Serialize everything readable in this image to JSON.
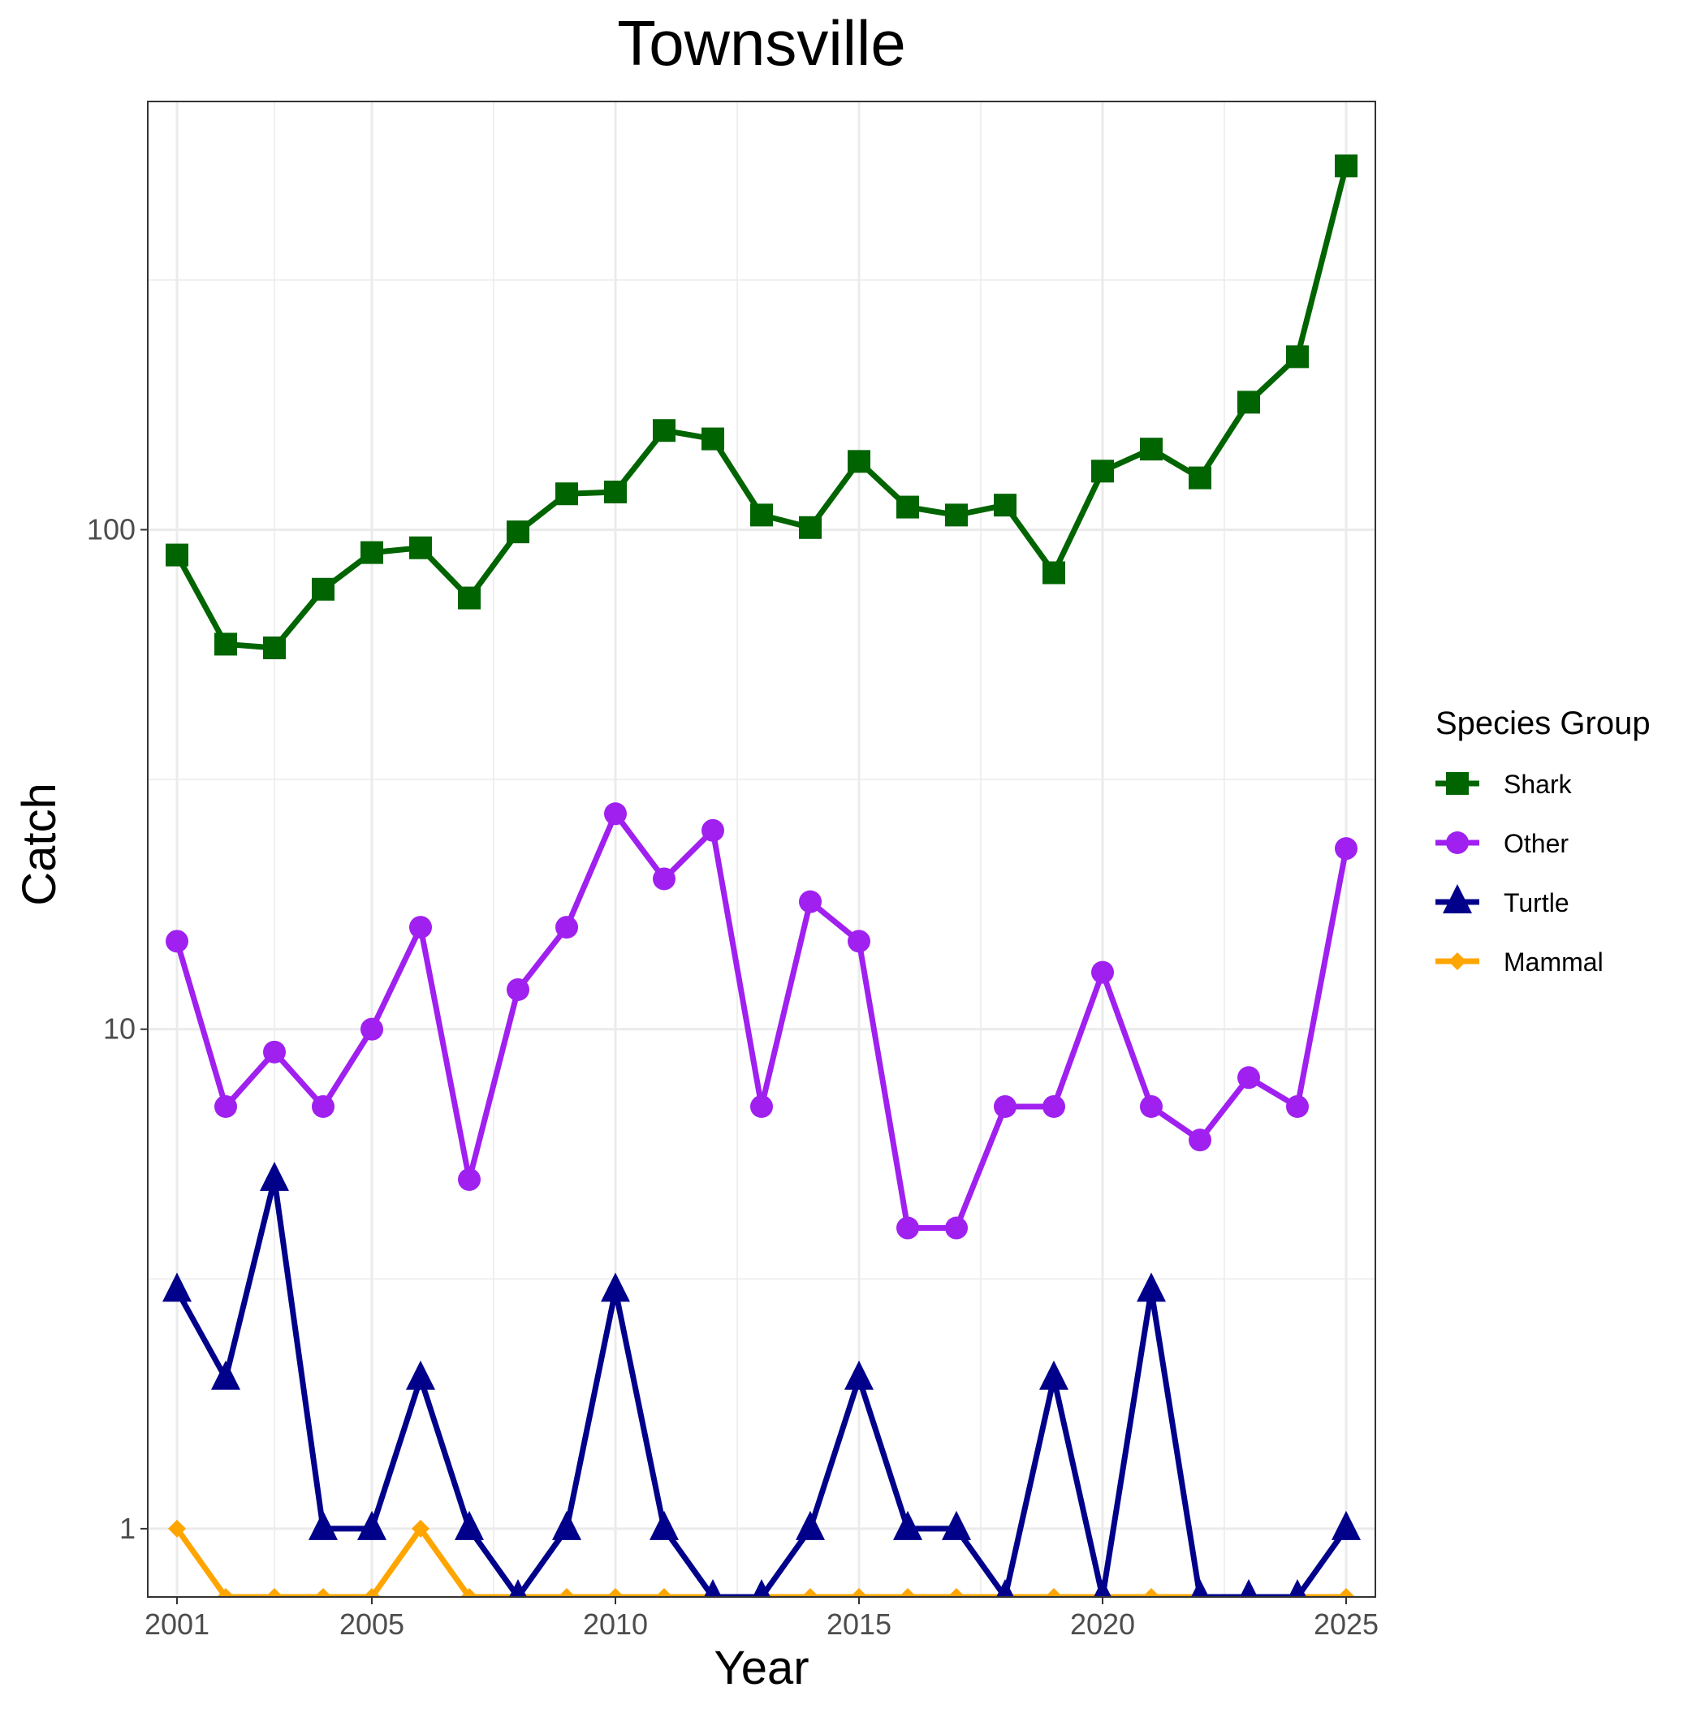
{
  "chart_data": {
    "type": "line",
    "title": "Townsville",
    "xlabel": "Year",
    "ylabel": "Catch",
    "y_scale": "log10",
    "xlim": [
      2000.4,
      2025.6
    ],
    "ylim": [
      0.73,
      720
    ],
    "grid": true,
    "legend": {
      "title": "Species Group",
      "position": "right"
    },
    "x_ticks": [
      {
        "value": 2001,
        "label": "2001"
      },
      {
        "value": 2005,
        "label": "2005"
      },
      {
        "value": 2010,
        "label": "2010"
      },
      {
        "value": 2015,
        "label": "2015"
      },
      {
        "value": 2020,
        "label": "2020"
      },
      {
        "value": 2025,
        "label": "2025"
      }
    ],
    "y_ticks": [
      {
        "value": 1,
        "label": "1"
      },
      {
        "value": 10,
        "label": "10"
      },
      {
        "value": 100,
        "label": "100"
      }
    ],
    "x": [
      2001,
      2002,
      2003,
      2004,
      2005,
      2006,
      2007,
      2008,
      2009,
      2010,
      2011,
      2012,
      2013,
      2014,
      2015,
      2016,
      2017,
      2018,
      2019,
      2020,
      2021,
      2022,
      2023,
      2024,
      2025
    ],
    "series": [
      {
        "name": "Shark",
        "color": "#006400",
        "marker": "square",
        "values": [
          89,
          59,
          58,
          76,
          90,
          92,
          73,
          99,
          118,
          119,
          158,
          152,
          107,
          101,
          137,
          111,
          107,
          112,
          82,
          131,
          145,
          127,
          180,
          222,
          535
        ]
      },
      {
        "name": "Other",
        "color": "#A020F0",
        "marker": "circle",
        "values": [
          15,
          7,
          9,
          7,
          10,
          16,
          5,
          12,
          16,
          27,
          20,
          25,
          7,
          18,
          15,
          4,
          4,
          7,
          7,
          13,
          7,
          6,
          8,
          7,
          23
        ]
      },
      {
        "name": "Turtle",
        "color": "#00008B",
        "marker": "triangle",
        "values": [
          3,
          2,
          5,
          1,
          1,
          2,
          1,
          0,
          1,
          3,
          1,
          0,
          0,
          1,
          2,
          1,
          1,
          0,
          2,
          0,
          3,
          0,
          0,
          0,
          1
        ]
      },
      {
        "name": "Mammal",
        "color": "#FFA500",
        "marker": "diamond",
        "values": [
          1,
          0,
          0,
          0,
          0,
          1,
          0,
          0,
          0,
          0,
          0,
          0,
          0,
          0,
          0,
          0,
          0,
          0,
          0,
          0,
          0,
          0,
          0,
          0,
          0
        ]
      }
    ]
  }
}
